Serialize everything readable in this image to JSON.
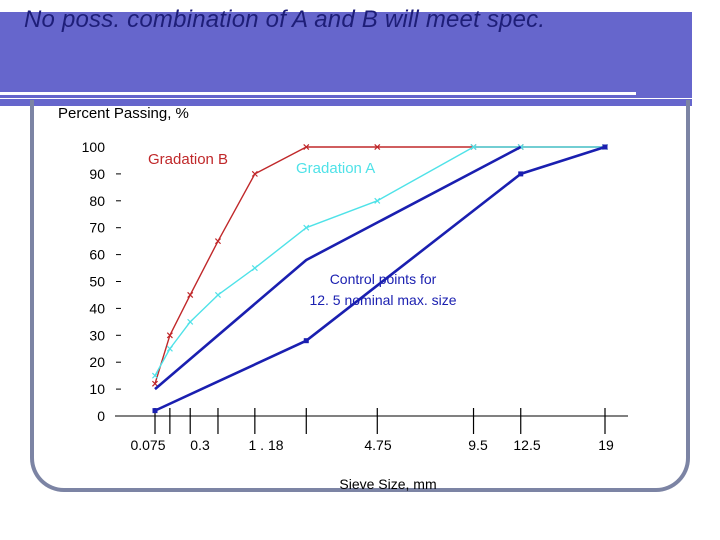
{
  "slide": {
    "title": "No poss. combination of A and B will meet spec."
  },
  "colors": {
    "header": "#6666cc",
    "title": "#1e1e78",
    "gradation_b": "#c0282a",
    "gradation_a": "#4fe2e8",
    "control": "#1a1fb0"
  },
  "chart_data": {
    "type": "line",
    "title": "No poss. combination of A and B will meet spec.",
    "ylabel": "Percent Passing, %",
    "xlabel": "Sieve Size, mm",
    "xscale": "power 0.45",
    "ylim": [
      0,
      100
    ],
    "yticks": [
      0,
      10,
      20,
      30,
      40,
      50,
      60,
      70,
      80,
      90,
      100
    ],
    "x_tick_labels": [
      "0.075",
      "0.3",
      "1 . 18",
      "4.75",
      "9.5",
      "12.5",
      "19"
    ],
    "x_ticks": [
      0.075,
      0.15,
      0.3,
      0.6,
      1.18,
      2.36,
      4.75,
      9.5,
      12.5,
      19
    ],
    "annotations": [
      "Gradation  B",
      "Gradation  A",
      "Control points for",
      "12. 5 nominal max. size"
    ],
    "series": [
      {
        "name": "Gradation  B",
        "color": "#c0282a",
        "marker": "x",
        "x": [
          0.075,
          0.15,
          0.3,
          0.6,
          1.18,
          2.36,
          4.75,
          9.5,
          12.5,
          19
        ],
        "y": [
          12,
          30,
          45,
          65,
          90,
          100,
          100,
          100,
          100,
          100
        ]
      },
      {
        "name": "Gradation  A",
        "color": "#4fe2e8",
        "marker": "x",
        "x": [
          0.075,
          0.15,
          0.3,
          0.6,
          1.18,
          2.36,
          4.75,
          9.5,
          12.5,
          19
        ],
        "y": [
          15,
          25,
          35,
          45,
          55,
          70,
          80,
          100,
          100,
          100
        ]
      },
      {
        "name": "Control upper",
        "color": "#1a1fb0",
        "marker": "none",
        "x": [
          0.075,
          2.36,
          12.5
        ],
        "y": [
          10,
          58,
          100
        ]
      },
      {
        "name": "Control lower",
        "color": "#1a1fb0",
        "marker": "square",
        "x": [
          0.075,
          2.36,
          12.5,
          19
        ],
        "y": [
          2,
          28,
          90,
          100
        ]
      }
    ]
  }
}
